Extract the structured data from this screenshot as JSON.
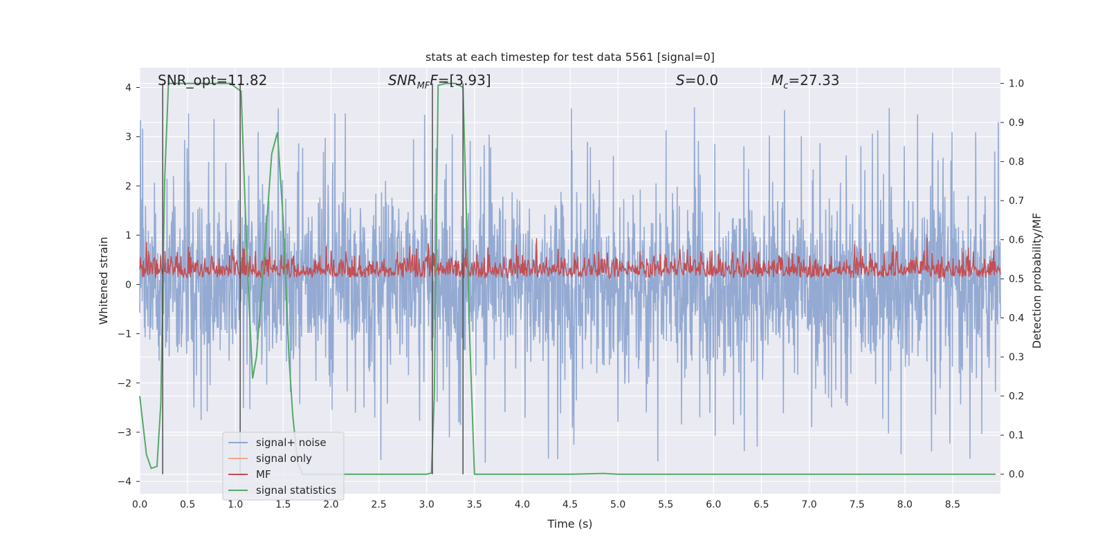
{
  "chart_data": {
    "type": "line",
    "title": "stats at each timestep for test data 5561 [signal=0]",
    "xlabel": "Time (s)",
    "ylabel": "Whitened strain",
    "ylabel_right": "Detection probability/MF",
    "xlim": [
      0.0,
      9.0
    ],
    "ylim": [
      -4.25,
      4.4
    ],
    "ylim_right": [
      -0.05,
      1.04
    ],
    "x_ticks": [
      "0.0",
      "0.5",
      "1.0",
      "1.5",
      "2.0",
      "2.5",
      "3.0",
      "3.5",
      "4.0",
      "4.5",
      "5.0",
      "5.5",
      "6.0",
      "6.5",
      "7.0",
      "7.5",
      "8.0",
      "8.5"
    ],
    "y_ticks": [
      "4",
      "3",
      "2",
      "1",
      "0",
      "−1",
      "−2",
      "−3",
      "−4"
    ],
    "y_right_ticks": [
      "1.0",
      "0.9",
      "0.8",
      "0.7",
      "0.6",
      "0.5",
      "0.4",
      "0.3",
      "0.2",
      "0.1",
      "0.0"
    ],
    "grid": true,
    "legend_position": "lower-left",
    "annotations": {
      "snr_opt": "SNR_opt=11.82",
      "snr_mf_main": "SNR",
      "snr_mf_sub": "MF",
      "snr_mf_value": "=[3.93]",
      "s_main": "S",
      "s_value": "=0.0",
      "mc_main": "M",
      "mc_sub": "c",
      "mc_value": "=27.33"
    },
    "series": [
      {
        "name": "signal+ noise",
        "color": "#8fa6d0",
        "description_level": "noise band approx -1.5 to 1.6, spikes to 3.9 / -3.8"
      },
      {
        "name": "signal only",
        "color": "#f0a98a"
      },
      {
        "name": "MF",
        "color": "#c44e52",
        "baseline": 0.5,
        "range": [
          0.5,
          0.62
        ]
      },
      {
        "name": "signal statistics",
        "color": "#55a868",
        "x": [
          0.0,
          0.07,
          0.12,
          0.18,
          0.22,
          0.26,
          0.3,
          0.33,
          0.5,
          0.7,
          0.95,
          1.0,
          1.06,
          1.1,
          1.14,
          1.18,
          1.22,
          1.3,
          1.38,
          1.44,
          1.5,
          1.56,
          1.6,
          1.65,
          1.7,
          1.8,
          2.0,
          2.5,
          3.0,
          3.05,
          3.08,
          3.12,
          3.2,
          3.3,
          3.38,
          3.45,
          3.5,
          4.0,
          4.5,
          4.85,
          5.0,
          5.5,
          6.0,
          7.0,
          8.0,
          8.95
        ],
        "values": [
          0.2,
          0.05,
          0.015,
          0.02,
          0.18,
          0.75,
          1.0,
          1.0,
          1.0,
          1.0,
          1.0,
          0.99,
          0.98,
          0.7,
          0.45,
          0.245,
          0.3,
          0.55,
          0.82,
          0.875,
          0.65,
          0.3,
          0.15,
          0.03,
          0.0,
          0.0,
          0.0,
          0.0,
          0.0,
          0.003,
          0.2,
          0.995,
          1.0,
          1.0,
          0.99,
          0.35,
          0.0,
          0.0,
          0.0,
          0.002,
          0.0,
          0.0,
          0.0,
          0.0,
          0.0,
          0.0
        ]
      }
    ],
    "vertical_markers_x": [
      0.24,
      1.05,
      3.06,
      3.38
    ]
  },
  "legend": {
    "signal_noise": "signal+ noise",
    "signal_only": "signal only",
    "mf": "MF",
    "signal_statistics": "signal statistics"
  },
  "colors": {
    "plot_bg": "#eaeaf2",
    "grid": "#ffffff",
    "noise": "#8fa6d0",
    "signal_only": "#f0a98a",
    "mf": "#c44e52",
    "stats": "#55a868",
    "marker": "#4d4d4d"
  }
}
